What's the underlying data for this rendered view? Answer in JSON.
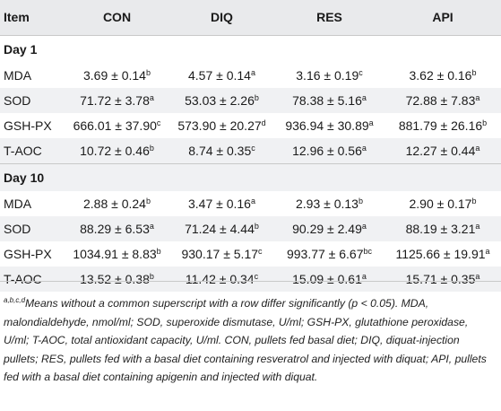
{
  "table": {
    "headers": [
      "Item",
      "CON",
      "DIQ",
      "RES",
      "API"
    ],
    "sections": [
      {
        "title": "Day 1",
        "rows": [
          {
            "label": "MDA",
            "cells": [
              [
                "3.69 ± 0.14",
                "b"
              ],
              [
                "4.57 ± 0.14",
                "a"
              ],
              [
                "3.16 ± 0.19",
                "c"
              ],
              [
                "3.62 ± 0.16",
                "b"
              ]
            ]
          },
          {
            "label": "SOD",
            "cells": [
              [
                "71.72 ± 3.78",
                "a"
              ],
              [
                "53.03 ± 2.26",
                "b"
              ],
              [
                "78.38 ± 5.16",
                "a"
              ],
              [
                "72.88 ± 7.83",
                "a"
              ]
            ]
          },
          {
            "label": "GSH-PX",
            "cells": [
              [
                "666.01 ± 37.90",
                "c"
              ],
              [
                "573.90 ± 20.27",
                "d"
              ],
              [
                "936.94 ± 30.89",
                "a"
              ],
              [
                "881.79 ± 26.16",
                "b"
              ]
            ]
          },
          {
            "label": "T-AOC",
            "cells": [
              [
                "10.72 ± 0.46",
                "b"
              ],
              [
                "8.74 ± 0.35",
                "c"
              ],
              [
                "12.96 ± 0.56",
                "a"
              ],
              [
                "12.27 ± 0.44",
                "a"
              ]
            ]
          }
        ]
      },
      {
        "title": "Day 10",
        "rows": [
          {
            "label": "MDA",
            "cells": [
              [
                "2.88 ± 0.24",
                "b"
              ],
              [
                "3.47 ± 0.16",
                "a"
              ],
              [
                "2.93 ± 0.13",
                "b"
              ],
              [
                "2.90 ± 0.17",
                "b"
              ]
            ]
          },
          {
            "label": "SOD",
            "cells": [
              [
                "88.29 ± 6.53",
                "a"
              ],
              [
                "71.24 ± 4.44",
                "b"
              ],
              [
                "90.29 ± 2.49",
                "a"
              ],
              [
                "88.19 ± 3.21",
                "a"
              ]
            ]
          },
          {
            "label": "GSH-PX",
            "cells": [
              [
                "1034.91 ± 8.83",
                "b"
              ],
              [
                "930.17 ± 5.17",
                "c"
              ],
              [
                "993.77 ± 6.67",
                "bc"
              ],
              [
                "1125.66 ± 19.91",
                "a"
              ]
            ]
          },
          {
            "label": "T-AOC",
            "cells": [
              [
                "13.52 ± 0.38",
                "b"
              ],
              [
                "11.42 ± 0.34",
                "c"
              ],
              [
                "15.09 ± 0.61",
                "a"
              ],
              [
                "15.71 ± 0.35",
                "a"
              ]
            ]
          }
        ]
      }
    ]
  },
  "footnote": {
    "marker": "a,b,c,d",
    "text": "Means without a common superscript with a row differ significantly (p < 0.05). MDA, malondialdehyde, nmol/ml; SOD, superoxide dismutase, U/ml; GSH-PX, glutathione peroxidase, U/ml; T-AOC, total antioxidant capacity, U/ml. CON, pullets fed basal diet; DIQ, diquat-injection pullets; RES, pullets fed with a basal diet containing resveratrol and injected with diquat; API, pullets fed with a basal diet containing apigenin and injected with diquat."
  }
}
